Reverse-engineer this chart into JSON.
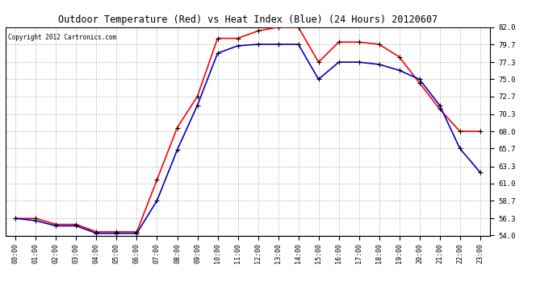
{
  "title": "Outdoor Temperature (Red) vs Heat Index (Blue) (24 Hours) 20120607",
  "copyright_text": "Copyright 2012 Cartronics.com",
  "x_labels": [
    "00:00",
    "01:00",
    "02:00",
    "03:00",
    "04:00",
    "05:00",
    "06:00",
    "07:00",
    "08:00",
    "09:00",
    "10:00",
    "11:00",
    "12:00",
    "13:00",
    "14:00",
    "15:00",
    "16:00",
    "17:00",
    "18:00",
    "19:00",
    "20:00",
    "21:00",
    "22:00",
    "23:00"
  ],
  "red_temp": [
    56.3,
    56.3,
    55.5,
    55.5,
    54.5,
    54.5,
    54.5,
    61.5,
    68.5,
    72.7,
    80.5,
    80.5,
    81.5,
    82.0,
    82.0,
    77.3,
    80.0,
    80.0,
    79.7,
    78.0,
    74.5,
    71.0,
    68.0,
    68.0
  ],
  "blue_temp": [
    56.3,
    56.0,
    55.3,
    55.3,
    54.3,
    54.3,
    54.3,
    58.7,
    65.5,
    71.5,
    78.5,
    79.5,
    79.7,
    79.7,
    79.7,
    75.0,
    77.3,
    77.3,
    77.0,
    76.2,
    75.0,
    71.5,
    65.7,
    62.5
  ],
  "red_color": "#ff0000",
  "blue_color": "#0000cc",
  "bg_color": "#ffffff",
  "plot_bg_color": "#ffffff",
  "grid_color": "#bbbbbb",
  "ylim_min": 54.0,
  "ylim_max": 82.0,
  "yticks": [
    54.0,
    56.3,
    58.7,
    61.0,
    63.3,
    65.7,
    68.0,
    70.3,
    72.7,
    75.0,
    77.3,
    79.7,
    82.0
  ],
  "title_fontsize": 8.5,
  "copyright_fontsize": 5.5,
  "tick_fontsize": 6,
  "ytick_fontsize": 6.5,
  "marker": "+",
  "marker_color": "#000000",
  "linewidth": 1.2,
  "marker_size": 4,
  "marker_linewidth": 0.8
}
